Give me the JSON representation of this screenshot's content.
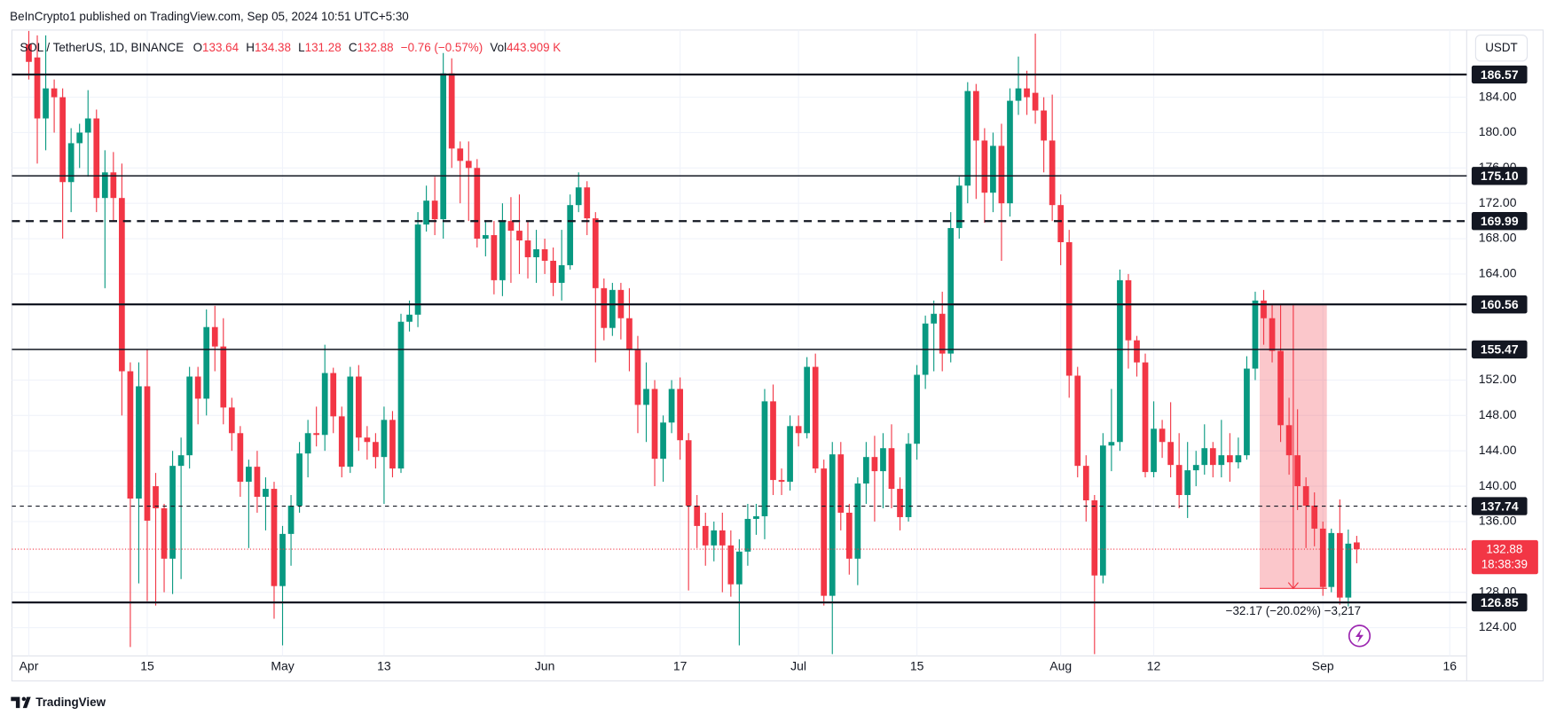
{
  "header": {
    "published": "BeInCrypto1 published on TradingView.com, Sep 05, 2024 10:51 UTC+5:30",
    "brand": "TradingView"
  },
  "chart_data": {
    "type": "candlestick",
    "symbol": "SOL / TetherUS, 1D, BINANCE",
    "ohlc_prefixes": [
      "O",
      "H",
      "L",
      "C"
    ],
    "change_label": "−0.76 (−0.57%)",
    "volume_prefix": "Vol",
    "volume_label": "443.909 K",
    "currency": "USDT",
    "countdown": "18:38:39",
    "up_color": "#089981",
    "down_color": "#f23645",
    "grid": true,
    "x": [
      "04-01",
      "04-02",
      "04-03",
      "04-04",
      "04-05",
      "04-06",
      "04-07",
      "04-08",
      "04-09",
      "04-10",
      "04-11",
      "04-12",
      "04-13",
      "04-14",
      "04-15",
      "04-16",
      "04-17",
      "04-18",
      "04-19",
      "04-20",
      "04-21",
      "04-22",
      "04-23",
      "04-24",
      "04-25",
      "04-26",
      "04-27",
      "04-28",
      "04-29",
      "04-30",
      "05-01",
      "05-02",
      "05-03",
      "05-04",
      "05-05",
      "05-06",
      "05-07",
      "05-08",
      "05-09",
      "05-10",
      "05-11",
      "05-12",
      "05-13",
      "05-14",
      "05-15",
      "05-16",
      "05-17",
      "05-18",
      "05-19",
      "05-20",
      "05-21",
      "05-22",
      "05-23",
      "05-24",
      "05-25",
      "05-26",
      "05-27",
      "05-28",
      "05-29",
      "05-30",
      "05-31",
      "06-01",
      "06-02",
      "06-03",
      "06-04",
      "06-05",
      "06-06",
      "06-07",
      "06-08",
      "06-09",
      "06-10",
      "06-11",
      "06-12",
      "06-13",
      "06-14",
      "06-15",
      "06-16",
      "06-17",
      "06-18",
      "06-19",
      "06-20",
      "06-21",
      "06-22",
      "06-23",
      "06-24",
      "06-25",
      "06-26",
      "06-27",
      "06-28",
      "06-29",
      "06-30",
      "07-01",
      "07-02",
      "07-03",
      "07-04",
      "07-05",
      "07-06",
      "07-07",
      "07-08",
      "07-09",
      "07-10",
      "07-11",
      "07-12",
      "07-13",
      "07-14",
      "07-15",
      "07-16",
      "07-17",
      "07-18",
      "07-19",
      "07-20",
      "07-21",
      "07-22",
      "07-23",
      "07-24",
      "07-25",
      "07-26",
      "07-27",
      "07-28",
      "07-29",
      "07-30",
      "07-31",
      "08-01",
      "08-02",
      "08-03",
      "08-04",
      "08-05",
      "08-06",
      "08-07",
      "08-08",
      "08-09",
      "08-10",
      "08-11",
      "08-12",
      "08-13",
      "08-14",
      "08-15",
      "08-16",
      "08-17",
      "08-18",
      "08-19",
      "08-20",
      "08-21",
      "08-22",
      "08-23",
      "08-24",
      "08-25",
      "08-26",
      "08-27",
      "08-28",
      "08-29",
      "08-30",
      "08-31",
      "09-01",
      "09-02",
      "09-03",
      "09-04",
      "09-05"
    ],
    "open": [
      190,
      188.5,
      181.6,
      185,
      184,
      174.4,
      178.8,
      180,
      181.6,
      172.6,
      175.5,
      172.6,
      153,
      138.6,
      151.3,
      140,
      137.5,
      131.8,
      142.3,
      143.5,
      152.4,
      149.9,
      158,
      155.8,
      148.9,
      146,
      140.5,
      142.2,
      138.8,
      139.7,
      128.7,
      134.6,
      137.8,
      143.7,
      146,
      145.8,
      152.8,
      147.9,
      142.2,
      152.4,
      145.5,
      145,
      143.3,
      147.5,
      142,
      158.6,
      159.4,
      169.6,
      172.3,
      170.2,
      186.7,
      178.2,
      176.8,
      176,
      168,
      168.4,
      163.3,
      170,
      168.9,
      167.8,
      165.9,
      166.8,
      165.5,
      163,
      165,
      171.8,
      173.8,
      170.3,
      162.4,
      157.9,
      162.2,
      159,
      155.4,
      149.2,
      151,
      143.1,
      147.2,
      151,
      145.2,
      137.8,
      135.5,
      133.3,
      135,
      133.3,
      128.9,
      132.6,
      136.3,
      136.6,
      149.6,
      140.7,
      140.5,
      146.8,
      146,
      153.5,
      142,
      127.6,
      143.6,
      137,
      131.8,
      140.3,
      143.3,
      141.7,
      144.3,
      139.7,
      136.5,
      144.8,
      152.6,
      158.4,
      159.5,
      155,
      169.2,
      174,
      184.7,
      179.1,
      173.2,
      178.5,
      172,
      183.6,
      185,
      184.5,
      182.5,
      179.1,
      171.8,
      167.6,
      152.5,
      142.3,
      138.4,
      129.9,
      144.6,
      145,
      163.3,
      156.5,
      154,
      141.6,
      146.5,
      145,
      142.4,
      139,
      141.8,
      142.4,
      144.3,
      142.4,
      143.5,
      142.7,
      143.5,
      153.3,
      161,
      159,
      155.3,
      146.9,
      143.5,
      140,
      137.8,
      135.2,
      128.6,
      134.7,
      127.4,
      133.64
    ],
    "high": [
      191.5,
      191,
      191,
      186,
      185,
      180.5,
      181,
      184.8,
      182.6,
      178,
      177.8,
      176.5,
      154,
      154,
      155.5,
      141.5,
      138,
      144,
      145.5,
      153.5,
      153.5,
      160,
      160.4,
      159,
      150,
      146.8,
      143,
      144,
      141,
      140.5,
      135.5,
      139,
      145,
      147.5,
      149,
      156,
      153.4,
      149,
      153.5,
      153.7,
      146.8,
      146,
      149,
      148.5,
      159.5,
      161,
      171,
      174,
      175,
      189,
      188.4,
      179,
      179,
      177,
      170,
      170,
      172,
      172.7,
      173,
      170,
      169,
      168,
      167,
      169,
      173,
      175.5,
      174.5,
      171,
      163.5,
      163,
      163,
      162.4,
      157,
      154,
      152,
      148,
      152,
      152.3,
      146,
      139,
      137,
      136,
      137,
      135,
      134,
      138,
      138,
      151,
      151.5,
      142,
      148,
      148,
      154.6,
      155,
      143,
      145,
      145,
      138,
      141,
      145,
      145.7,
      146,
      147,
      141,
      146,
      153.7,
      159.3,
      161,
      162,
      171,
      175,
      185.7,
      185.5,
      180.5,
      180,
      181,
      185,
      188.6,
      187,
      191.2,
      184,
      184.3,
      173,
      169,
      153.5,
      143.5,
      139,
      146,
      151,
      164.5,
      164,
      157,
      155,
      149.6,
      147.5,
      149.5,
      146,
      145,
      144,
      147,
      145,
      147.5,
      146,
      145.5,
      154.7,
      162,
      162.2,
      160.5,
      160.5,
      150,
      148.7,
      141,
      139.3,
      136,
      135.2,
      138.5,
      135.1,
      134.38
    ],
    "low": [
      186,
      176.5,
      178,
      180,
      168,
      171,
      176,
      175,
      171,
      162.4,
      170,
      148,
      121.8,
      129,
      127,
      126.5,
      128,
      127.8,
      129.5,
      142,
      147,
      148,
      153,
      147,
      144,
      138.8,
      133,
      137,
      135,
      125,
      122,
      131,
      137,
      141,
      144.5,
      144,
      146,
      141,
      141.5,
      144,
      143,
      142,
      138,
      141,
      141.5,
      157.5,
      158,
      168.8,
      168.4,
      168,
      176,
      172,
      170,
      167,
      166,
      161.7,
      161.5,
      163,
      164,
      163.5,
      163,
      164,
      161.5,
      161,
      164.5,
      171,
      168.4,
      154,
      156.5,
      157,
      156.6,
      153,
      146,
      145,
      140,
      140.5,
      146,
      143,
      128.2,
      133,
      131,
      131.5,
      128,
      127.5,
      122,
      131,
      134.5,
      134,
      139,
      139,
      139.5,
      144.5,
      145.4,
      141.5,
      126.5,
      121,
      135,
      130,
      128.8,
      138,
      136,
      137.5,
      137.5,
      135,
      136,
      143,
      151,
      153,
      153,
      154,
      168,
      172,
      172.5,
      169.8,
      171,
      165.5,
      170.5,
      182,
      182,
      181,
      175.5,
      170,
      165,
      150,
      141,
      136,
      121,
      129,
      141.7,
      144,
      153.3,
      152.4,
      141,
      141,
      143.2,
      141,
      137.5,
      136.4,
      140,
      141.3,
      141,
      141,
      140.5,
      142,
      143,
      152,
      156,
      154,
      145,
      141.3,
      137.3,
      133,
      133.2,
      127.6,
      128,
      126.6,
      126.4,
      131.28
    ],
    "close": [
      188,
      181.6,
      185,
      184,
      174.4,
      178.8,
      180,
      181.6,
      172.6,
      175.5,
      172.6,
      153,
      138.6,
      151.3,
      136.1,
      137.5,
      131.8,
      142.3,
      143.5,
      152.4,
      149.9,
      158,
      155.8,
      148.9,
      146,
      140.5,
      142.2,
      138.8,
      139.7,
      128.7,
      134.6,
      137.8,
      143.7,
      146,
      145.8,
      152.8,
      147.9,
      142.2,
      152.4,
      145.5,
      145,
      143.3,
      147.5,
      142,
      158.6,
      159.4,
      169.6,
      172.3,
      170.2,
      186.7,
      178.2,
      176.8,
      176,
      168,
      168.4,
      163.3,
      170,
      168.9,
      167.8,
      165.9,
      166.8,
      165.5,
      163,
      165,
      171.8,
      173.8,
      170.3,
      162.4,
      157.9,
      162.2,
      159,
      155.4,
      149.2,
      151,
      143.1,
      147.2,
      151,
      145.2,
      137.8,
      135.5,
      133.3,
      135,
      133.3,
      128.9,
      132.6,
      136.3,
      136.6,
      149.6,
      140.7,
      140.5,
      146.8,
      146,
      153.5,
      142,
      127.6,
      143.6,
      137,
      131.8,
      140.3,
      143.3,
      141.7,
      144.3,
      139.7,
      136.5,
      144.8,
      152.6,
      158.4,
      159.5,
      155,
      169.2,
      174,
      184.7,
      179.1,
      173.2,
      178.5,
      172,
      183.6,
      185,
      184,
      182.5,
      179.1,
      171.8,
      167.6,
      152.5,
      142.3,
      138.4,
      129.9,
      144.6,
      145,
      163.3,
      156.5,
      154,
      141.6,
      146.5,
      145,
      142.4,
      139,
      141.8,
      142.4,
      144.3,
      142.4,
      143.5,
      142.7,
      143.5,
      153.3,
      161,
      159,
      155.3,
      146.9,
      143.5,
      140,
      137.8,
      135.2,
      128.6,
      134.7,
      127.4,
      133.5,
      132.88
    ],
    "xlim": [
      "03-30",
      "09-18"
    ],
    "xticks": [
      {
        "value": "04-01",
        "label": "Apr"
      },
      {
        "value": "04-15",
        "label": "15"
      },
      {
        "value": "05-01",
        "label": "May"
      },
      {
        "value": "05-13",
        "label": "13"
      },
      {
        "value": "06-01",
        "label": "Jun"
      },
      {
        "value": "06-17",
        "label": "17"
      },
      {
        "value": "07-01",
        "label": "Jul"
      },
      {
        "value": "07-15",
        "label": "15"
      },
      {
        "value": "08-01",
        "label": "Aug"
      },
      {
        "value": "08-12",
        "label": "12"
      },
      {
        "value": "09-01",
        "label": "Sep"
      },
      {
        "value": "09-16",
        "label": "16"
      }
    ],
    "ylim": [
      120.8,
      191.6
    ],
    "yticks": [
      {
        "value": 124,
        "label": "124.00"
      },
      {
        "value": 128,
        "label": "128.00"
      },
      {
        "value": 136,
        "label": "136.00"
      },
      {
        "value": 140,
        "label": "140.00"
      },
      {
        "value": 144,
        "label": "144.00"
      },
      {
        "value": 148,
        "label": "148.00"
      },
      {
        "value": 152,
        "label": "152.00"
      },
      {
        "value": 164,
        "label": "164.00"
      },
      {
        "value": 168,
        "label": "168.00"
      },
      {
        "value": 172,
        "label": "172.00"
      },
      {
        "value": 176,
        "label": "176.00"
      },
      {
        "value": 180,
        "label": "180.00"
      },
      {
        "value": 184,
        "label": "184.00"
      }
    ],
    "levels": [
      {
        "value": 186.57,
        "label": "186.57",
        "style": "solid",
        "width": 2
      },
      {
        "value": 175.1,
        "label": "175.10",
        "style": "solid",
        "width": 1.3
      },
      {
        "value": 169.99,
        "label": "169.99",
        "style": "dashed",
        "width": 2
      },
      {
        "value": 160.56,
        "label": "160.56",
        "style": "solid",
        "width": 2
      },
      {
        "value": 155.47,
        "label": "155.47",
        "style": "solid",
        "width": 1.3
      },
      {
        "value": 137.74,
        "label": "137.74",
        "style": "dashed",
        "width": 1
      },
      {
        "value": 126.85,
        "label": "126.85",
        "style": "solid",
        "width": 2
      }
    ],
    "measure": {
      "start": "08-25",
      "end": "09-01",
      "high": 160.6,
      "low": 128.43,
      "label": "−32.17 (−20.02%) −3,217",
      "color": "#f23645"
    }
  }
}
